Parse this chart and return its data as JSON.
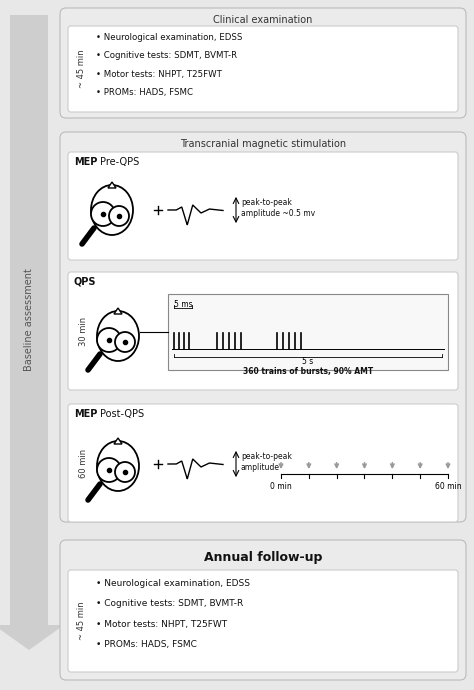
{
  "bg_color": "#e8e8e8",
  "panel_bg": "#ebebeb",
  "white": "#ffffff",
  "border_color": "#bbbbbb",
  "inner_border": "#cccccc",
  "text_dark": "#111111",
  "text_med": "#333333",
  "text_light": "#666666",
  "arrow_color": "#cccccc",
  "clinical_title": "Clinical examination",
  "clinical_time": "~ 45 min",
  "clinical_bullets": [
    "• Neurological examination, EDSS",
    "• Cognitive tests: SDMT, BVMT-R",
    "• Motor tests: NHPT, T25FWT",
    "• PROMs: HADS, FSMC"
  ],
  "tms_title": "Transcranial magnetic stimulation",
  "tms_time_qps": "30 min",
  "tms_time_post": "60 min",
  "followup_title": "Annual follow-up",
  "followup_time": "~ 45 min",
  "followup_bullets": [
    "• Neurological examination, EDSS",
    "• Cognitive tests: SDMT, BVMT-R",
    "• Motor tests: NHPT, T25FWT",
    "• PROMs: HADS, FSMC"
  ],
  "baseline_label": "Baseline assessment"
}
